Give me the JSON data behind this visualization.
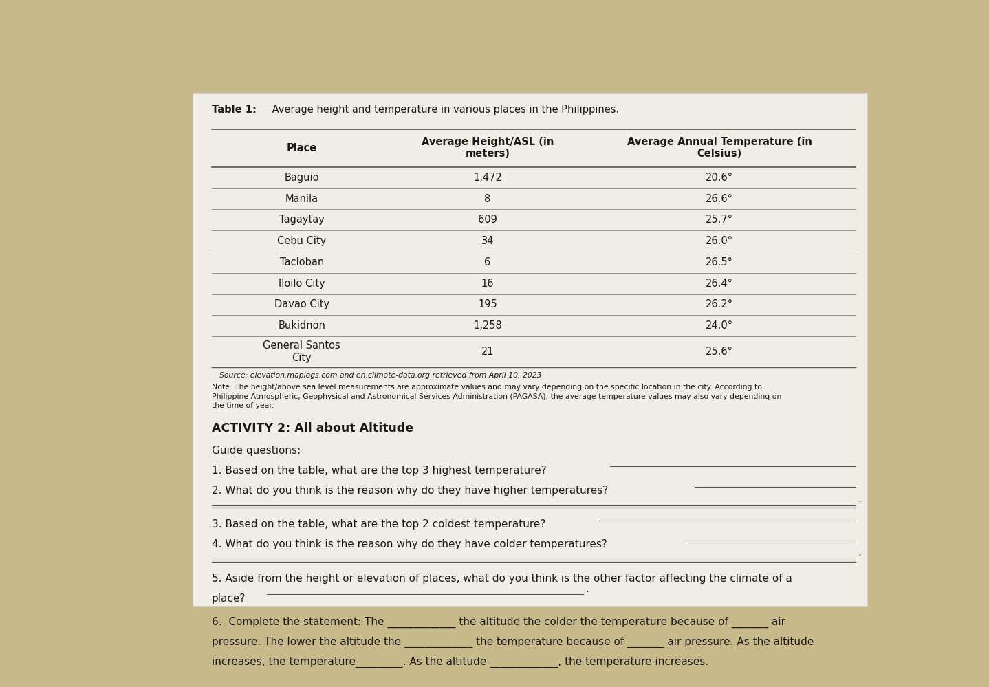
{
  "table_title_bold": "Table 1:",
  "table_title_rest": " Average height and temperature in various places in the Philippines.",
  "col_headers": [
    "Place",
    "Average Height/ASL (in\nmeters)",
    "Average Annual Temperature (in\nCelsius)"
  ],
  "rows": [
    [
      "Baguio",
      "1,472",
      "20.6°"
    ],
    [
      "Manila",
      "8",
      "26.6°"
    ],
    [
      "Tagaytay",
      "609",
      "25.7°"
    ],
    [
      "Cebu City",
      "34",
      "26.0°"
    ],
    [
      "Tacloban",
      "6",
      "26.5°"
    ],
    [
      "Iloilo City",
      "16",
      "26.4°"
    ],
    [
      "Davao City",
      "195",
      "26.2°"
    ],
    [
      "Bukidnon",
      "1,258",
      "24.0°"
    ],
    [
      "General Santos\nCity",
      "21",
      "25.6°"
    ]
  ],
  "source_text": "Source: elevation.maplogs.com and en.climate-data.org retrieved from April 10, 2023",
  "note_text": "Note: The height/above sea level measurements are approximate values and may vary depending on the specific location in the city. According to\nPhilippine Atmospheric, Geophysical and Astronomical Services Administration (PAGASA), the average temperature values may also vary depending on\nthe time of year.",
  "activity_title": "ACTIVITY 2: All about Altitude",
  "guide_label": "Guide questions:",
  "bg_color": "#c8b98a",
  "paper_color": "#f0ede6",
  "text_color": "#1a1a1a",
  "line_color": "#555555"
}
